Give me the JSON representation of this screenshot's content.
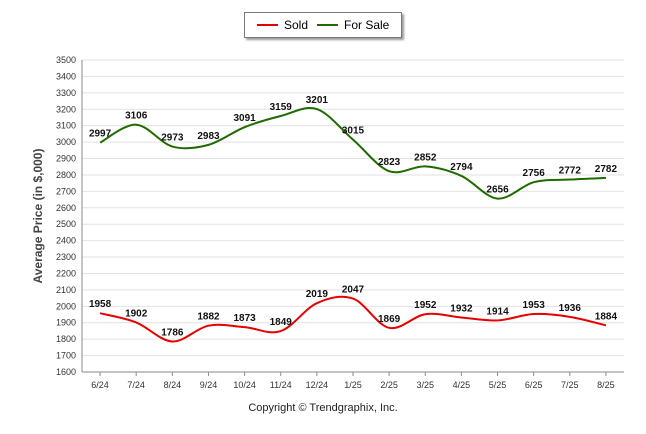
{
  "chart_data": {
    "type": "line",
    "categories": [
      "6/24",
      "7/24",
      "8/24",
      "9/24",
      "10/24",
      "11/24",
      "12/24",
      "1/25",
      "2/25",
      "3/25",
      "4/25",
      "5/25",
      "6/25",
      "7/25",
      "8/25"
    ],
    "series": [
      {
        "name": "Sold",
        "color": "#e60000",
        "values": [
          1958,
          1902,
          1786,
          1882,
          1873,
          1849,
          2019,
          2047,
          1869,
          1952,
          1932,
          1914,
          1953,
          1936,
          1884
        ]
      },
      {
        "name": "For Sale",
        "color": "#1e6b00",
        "values": [
          2997,
          3106,
          2973,
          2983,
          3091,
          3159,
          3201,
          3015,
          2823,
          2852,
          2794,
          2656,
          2756,
          2772,
          2782
        ]
      }
    ],
    "ylabel": "Average Price (in $,000)",
    "xlabel": "",
    "ylim": [
      1600,
      3500
    ],
    "yticks": [
      1600,
      1700,
      1800,
      1900,
      2000,
      2100,
      2200,
      2300,
      2400,
      2500,
      2600,
      2700,
      2800,
      2900,
      3000,
      3100,
      3200,
      3300,
      3400,
      3500
    ],
    "grid": true,
    "legend_position": "top-center"
  },
  "footer": "Copyright © Trendgraphix, Inc."
}
